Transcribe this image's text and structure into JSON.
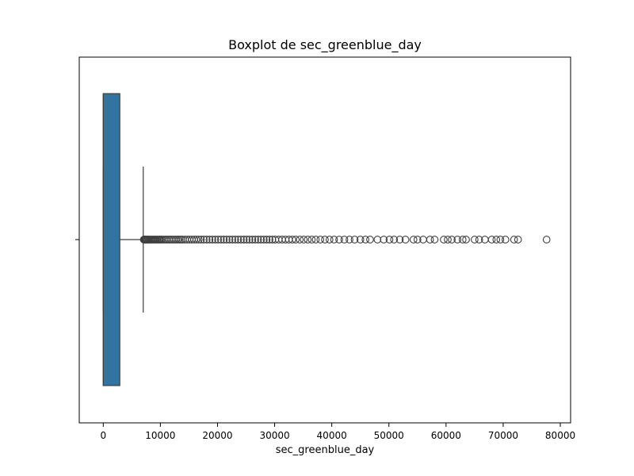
{
  "chart_data": {
    "type": "box",
    "title": "Boxplot de sec_greenblue_day",
    "xlabel": "sec_greenblue_day",
    "ylabel": "",
    "orientation": "horizontal",
    "xlim": [
      -4200,
      81800
    ],
    "x_ticks": [
      0,
      10000,
      20000,
      30000,
      40000,
      50000,
      60000,
      70000,
      80000
    ],
    "x_tick_labels": [
      "0",
      "10000",
      "20000",
      "30000",
      "40000",
      "50000",
      "60000",
      "70000",
      "80000"
    ],
    "grid": false,
    "box": {
      "whisker_low": 0,
      "q1": 0,
      "median": 0,
      "q3": 2900,
      "whisker_high": 7000,
      "color": "#3274a1",
      "edge_color": "#3f3f3f"
    },
    "outliers": [
      7100,
      7200,
      7300,
      7400,
      7500,
      7650,
      7800,
      7950,
      8100,
      8300,
      8500,
      8700,
      8900,
      9100,
      9300,
      9500,
      9700,
      9900,
      10100,
      10300,
      10600,
      10900,
      11200,
      11500,
      11800,
      12100,
      12400,
      12700,
      13000,
      13300,
      13600,
      13900,
      14300,
      14700,
      15100,
      15500,
      15900,
      16300,
      16700,
      17100,
      17600,
      18100,
      18600,
      19100,
      19600,
      20100,
      20600,
      21100,
      21600,
      22100,
      22600,
      23100,
      23600,
      24100,
      24600,
      25100,
      25600,
      26100,
      26600,
      27100,
      27600,
      28100,
      28600,
      29100,
      29600,
      30100,
      30700,
      31300,
      31900,
      32500,
      33100,
      33700,
      34400,
      35100,
      35800,
      36500,
      37200,
      38000,
      38800,
      39600,
      40400,
      41300,
      42200,
      43100,
      44000,
      45000,
      45900,
      46700,
      48000,
      49100,
      50100,
      50900,
      51900,
      52900,
      54300,
      55000,
      56000,
      57200,
      58000,
      59600,
      60300,
      61000,
      62000,
      62900,
      63500,
      65000,
      65800,
      66800,
      68000,
      68800,
      69500,
      70400,
      71900,
      72600,
      77600
    ],
    "outlier_style": {
      "marker": "circle",
      "fill": "none",
      "stroke": "#3f3f3f"
    }
  }
}
